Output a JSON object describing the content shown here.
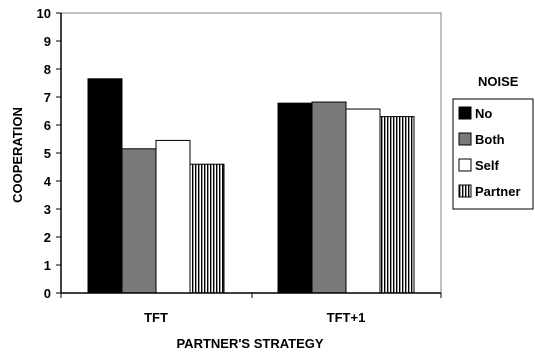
{
  "chart_data": {
    "type": "bar",
    "title": "",
    "xlabel": "PARTNER'S STRATEGY",
    "ylabel": "COOPERATION",
    "ylim": [
      0,
      10
    ],
    "yticks": [
      0,
      1,
      2,
      3,
      4,
      5,
      6,
      7,
      8,
      9,
      10
    ],
    "categories": [
      "TFT",
      "TFT+1"
    ],
    "grid": false,
    "legend": {
      "title": "NOISE",
      "placement": "right"
    },
    "series": [
      {
        "name": "No",
        "values": [
          7.65,
          6.78
        ],
        "color": "#000000",
        "pattern": "solid"
      },
      {
        "name": "Both",
        "values": [
          5.15,
          6.82
        ],
        "color": "#7a7a7a",
        "pattern": "solid"
      },
      {
        "name": "Self",
        "values": [
          5.45,
          6.57
        ],
        "color": "#ffffff",
        "pattern": "solid"
      },
      {
        "name": "Partner",
        "values": [
          4.6,
          6.3
        ],
        "color": "#000000",
        "pattern": "vertical-stripes"
      }
    ]
  }
}
